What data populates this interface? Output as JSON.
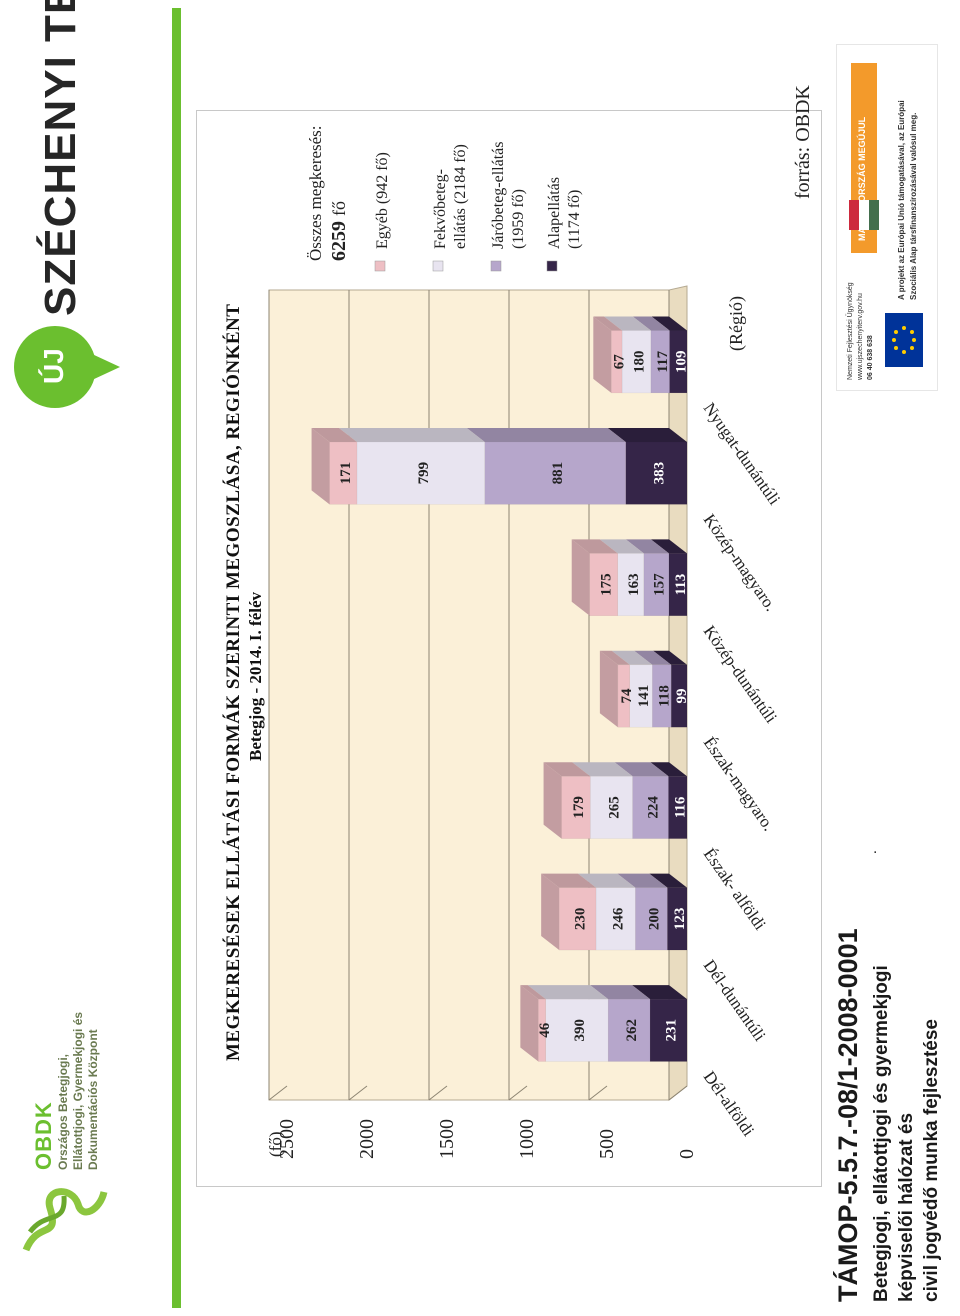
{
  "brand": {
    "szechenyi_logo_text": "SZÉCHENYI TERV",
    "uj_badge": "ÚJ",
    "obdk_logo_text": "OBDK",
    "obdk_org_name": "Országos Betegjogi, Ellátottjogi, Gyermekjogi és Dokumentációs Központ"
  },
  "project": {
    "code": "TÁMOP-5.5.7.-08/1-2008-0001",
    "title_lines": [
      "Betegjogi, ellátottjogi és gyermekjogi",
      "képviselői hálózat és",
      "civil jogvédő munka fejlesztése"
    ],
    "dot": "."
  },
  "eu_box": {
    "agency_lines": [
      "Nemzeti Fejlesztési Ügynökség",
      "www.ujszechenyiterv.gov.hu",
      "06 40 638 638"
    ],
    "hungary_badge": "MAGYARORSZÁG MEGÚJUL",
    "eu_lines": [
      "A projekt az Európai Unió támogatásával, az Európai",
      "Szociális Alap társfinanszírozásával valósul meg."
    ]
  },
  "colors": {
    "green": "#6bbf2f",
    "chart_bg": "#fbf0d8",
    "egyeb": "#eebfc4",
    "fekvo": "#e8e4f0",
    "jaro": "#b6a6cb",
    "alap": "#352548"
  },
  "chart_data": {
    "type": "bar",
    "stacked": true,
    "title": "MEGKERESÉSEK ELLÁTÁSI FORMÁK SZERINTI MEGOSZLÁSA, REGIÓNKÉNT",
    "subtitle": "Betegjog - 2014. I. félév",
    "ylabel": "(fő)",
    "xlabel": "(Régió)",
    "ylim": [
      0,
      2500
    ],
    "yticks": [
      "0",
      "500",
      "1000",
      "1500",
      "2000",
      "2500"
    ],
    "categories": [
      "Dél-alföldi",
      "Dél-dunántúli",
      "Észak- alföldi",
      "Észak-magyaro.",
      "Közép-dunántúli",
      "Közép-magyaro.",
      "Nyugat-dunántúli"
    ],
    "series": [
      {
        "name": "Alapellátás",
        "values": [
          231,
          123,
          116,
          99,
          113,
          383,
          109
        ]
      },
      {
        "name": "Járóbeteg-ellátás",
        "values": [
          262,
          200,
          224,
          118,
          157,
          881,
          117
        ]
      },
      {
        "name": "Fekvőbeteg-ellátás",
        "values": [
          390,
          246,
          265,
          141,
          163,
          799,
          180
        ]
      },
      {
        "name": "Egyéb",
        "values": [
          46,
          230,
          179,
          74,
          175,
          171,
          67
        ]
      }
    ],
    "legend": [
      {
        "label": "Egyéb (942 fő)",
        "color_key": "egyeb"
      },
      {
        "label": "Fekvőbeteg-ellátás (2184 fő)",
        "color_key": "fekvo"
      },
      {
        "label": "Járóbeteg-ellátás (1959 fő)",
        "color_key": "jaro"
      },
      {
        "label": "Alapellátás (1174 fő)",
        "color_key": "alap"
      }
    ],
    "total_label": "Összes megkeresés:",
    "total_value": "6259",
    "total_unit": "fő",
    "source": "forrás: OBDK",
    "legend_position": "right",
    "grid": true
  }
}
